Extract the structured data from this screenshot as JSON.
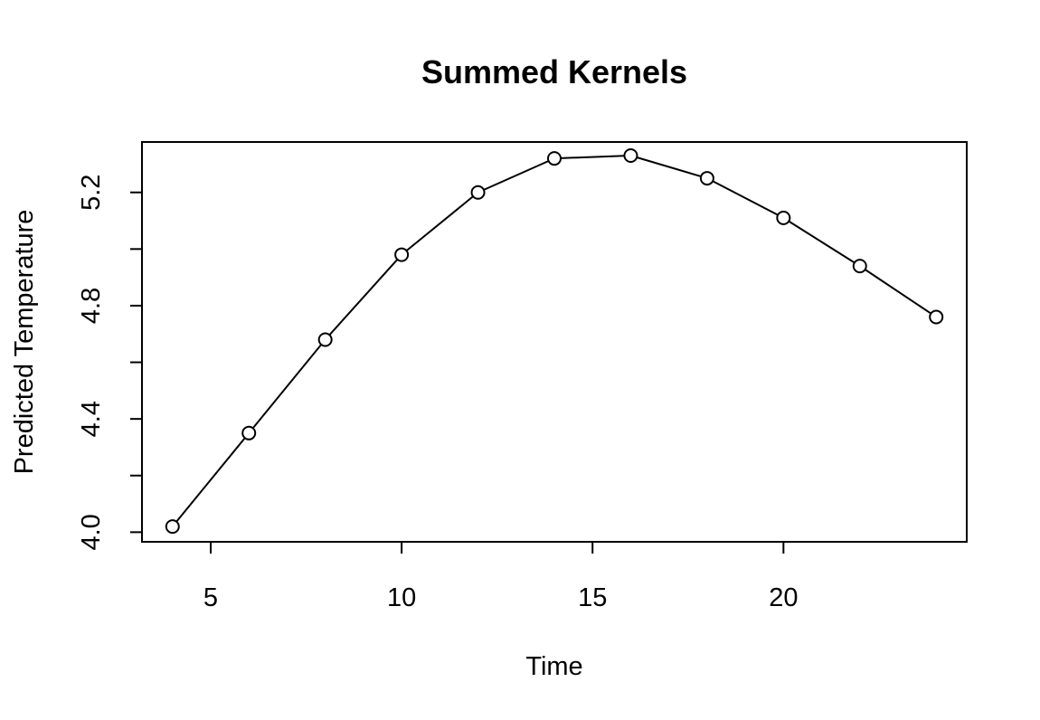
{
  "chart_data": {
    "type": "line",
    "title": "Summed Kernels",
    "xlabel": "Time",
    "ylabel": "Predicted Temperature",
    "x": [
      4,
      6,
      8,
      10,
      12,
      14,
      16,
      18,
      20,
      22,
      24
    ],
    "series": [
      {
        "values": [
          4.02,
          4.35,
          4.68,
          4.98,
          5.2,
          5.32,
          5.33,
          5.25,
          5.11,
          4.94,
          4.76
        ]
      }
    ],
    "xlim": [
      3.2,
      24.8
    ],
    "ylim": [
      3.966,
      5.378
    ],
    "xticks": [
      5,
      10,
      15,
      20
    ],
    "yticks": [
      4.0,
      4.2,
      4.4,
      4.6,
      4.8,
      5.0,
      5.2
    ],
    "ytick_labels": [
      "4.0",
      "",
      "4.4",
      "",
      "4.8",
      "",
      "5.2"
    ],
    "markers": "open-circle",
    "grid": false,
    "legend": "none"
  }
}
